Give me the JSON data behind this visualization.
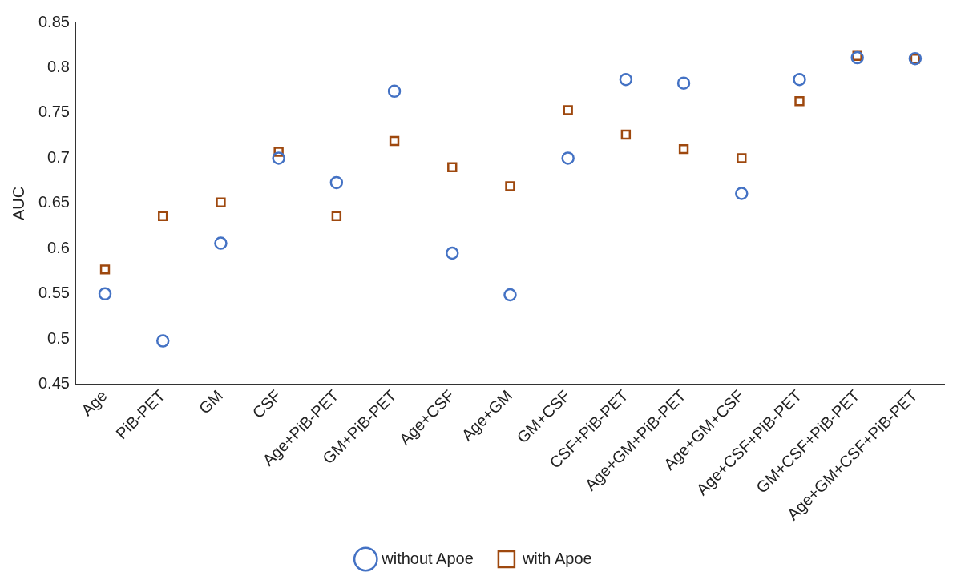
{
  "chart_data": {
    "type": "scatter",
    "ylabel": "AUC",
    "categories": [
      "Age",
      "PiB-PET",
      "GM",
      "CSF",
      "Age+PiB-PET",
      "GM+PiB-PET",
      "Age+CSF",
      "Age+GM",
      "GM+CSF",
      "CSF+PiB-PET",
      "Age+GM+PiB-PET",
      "Age+GM+CSF",
      "Age+CSF+PiB-PET",
      "GM+CSF+PiB-PET",
      "Age+GM+CSF+PiB-PET"
    ],
    "series": [
      {
        "name": "without Apoe",
        "color": "#4472c4",
        "marker": "circle",
        "values": [
          0.55,
          0.498,
          0.606,
          0.7,
          0.673,
          0.774,
          0.595,
          0.549,
          0.7,
          0.787,
          0.783,
          0.661,
          0.787,
          0.811,
          0.81
        ]
      },
      {
        "name": "with Apoe",
        "color": "#9e480e",
        "marker": "square",
        "values": [
          0.577,
          0.636,
          0.651,
          0.707,
          0.636,
          0.719,
          0.69,
          0.669,
          0.753,
          0.726,
          0.71,
          0.7,
          0.763,
          0.813,
          0.81
        ]
      }
    ],
    "ylim": [
      0.45,
      0.85
    ],
    "yticks": [
      0.45,
      0.5,
      0.55,
      0.6,
      0.65,
      0.7,
      0.75,
      0.8,
      0.85
    ],
    "grid": false,
    "legend": "bottom"
  }
}
